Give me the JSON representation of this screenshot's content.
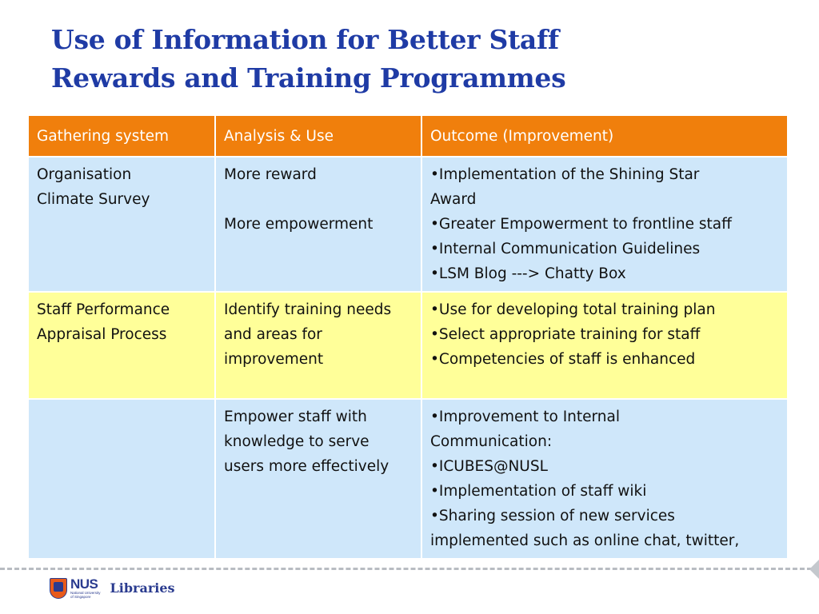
{
  "slide": {
    "title_lines": [
      "Use of Information for Better Staff",
      "Rewards and Training Programmes"
    ]
  },
  "table": {
    "headers": [
      "Gathering system",
      "Analysis & Use",
      "Outcome  (Improvement)"
    ],
    "rows": [
      {
        "gathering": [
          "Organisation",
          "Climate Survey"
        ],
        "analysis_a": "More reward",
        "analysis_b": "More empowerment",
        "outcome": [
          "•Implementation of the  Shining Star",
          "Award",
          "•Greater Empowerment to frontline staff",
          "•Internal Communication Guidelines",
          "•LSM Blog  ---> Chatty Box"
        ]
      },
      {
        "gathering": [
          "Staff Performance",
          "Appraisal Process"
        ],
        "analysis": [
          "Identify training needs",
          "and areas for",
          "improvement"
        ],
        "outcome": [
          "•Use for developing total training plan",
          "•Select appropriate training for staff",
          "•Competencies of staff is enhanced"
        ]
      },
      {
        "gathering": [],
        "analysis": [
          "Empower staff with",
          "knowledge to serve",
          "users more effectively"
        ],
        "outcome": [
          "•Improvement to Internal",
          "Communication:",
          "•ICUBES@NUSL",
          "•Implementation of staff wiki",
          "•Sharing session of new services",
          "implemented such as online chat, twitter,"
        ]
      }
    ]
  },
  "footer": {
    "logo_word": "NUS",
    "logo_sub_1": "National University",
    "logo_sub_2": "of Singapore",
    "libraries": "Libraries"
  },
  "colors": {
    "title": "#1f3ba5",
    "header_bg": "#f07f0c",
    "row_blue": "#cfe7fa",
    "row_yellow": "#ffff99"
  }
}
